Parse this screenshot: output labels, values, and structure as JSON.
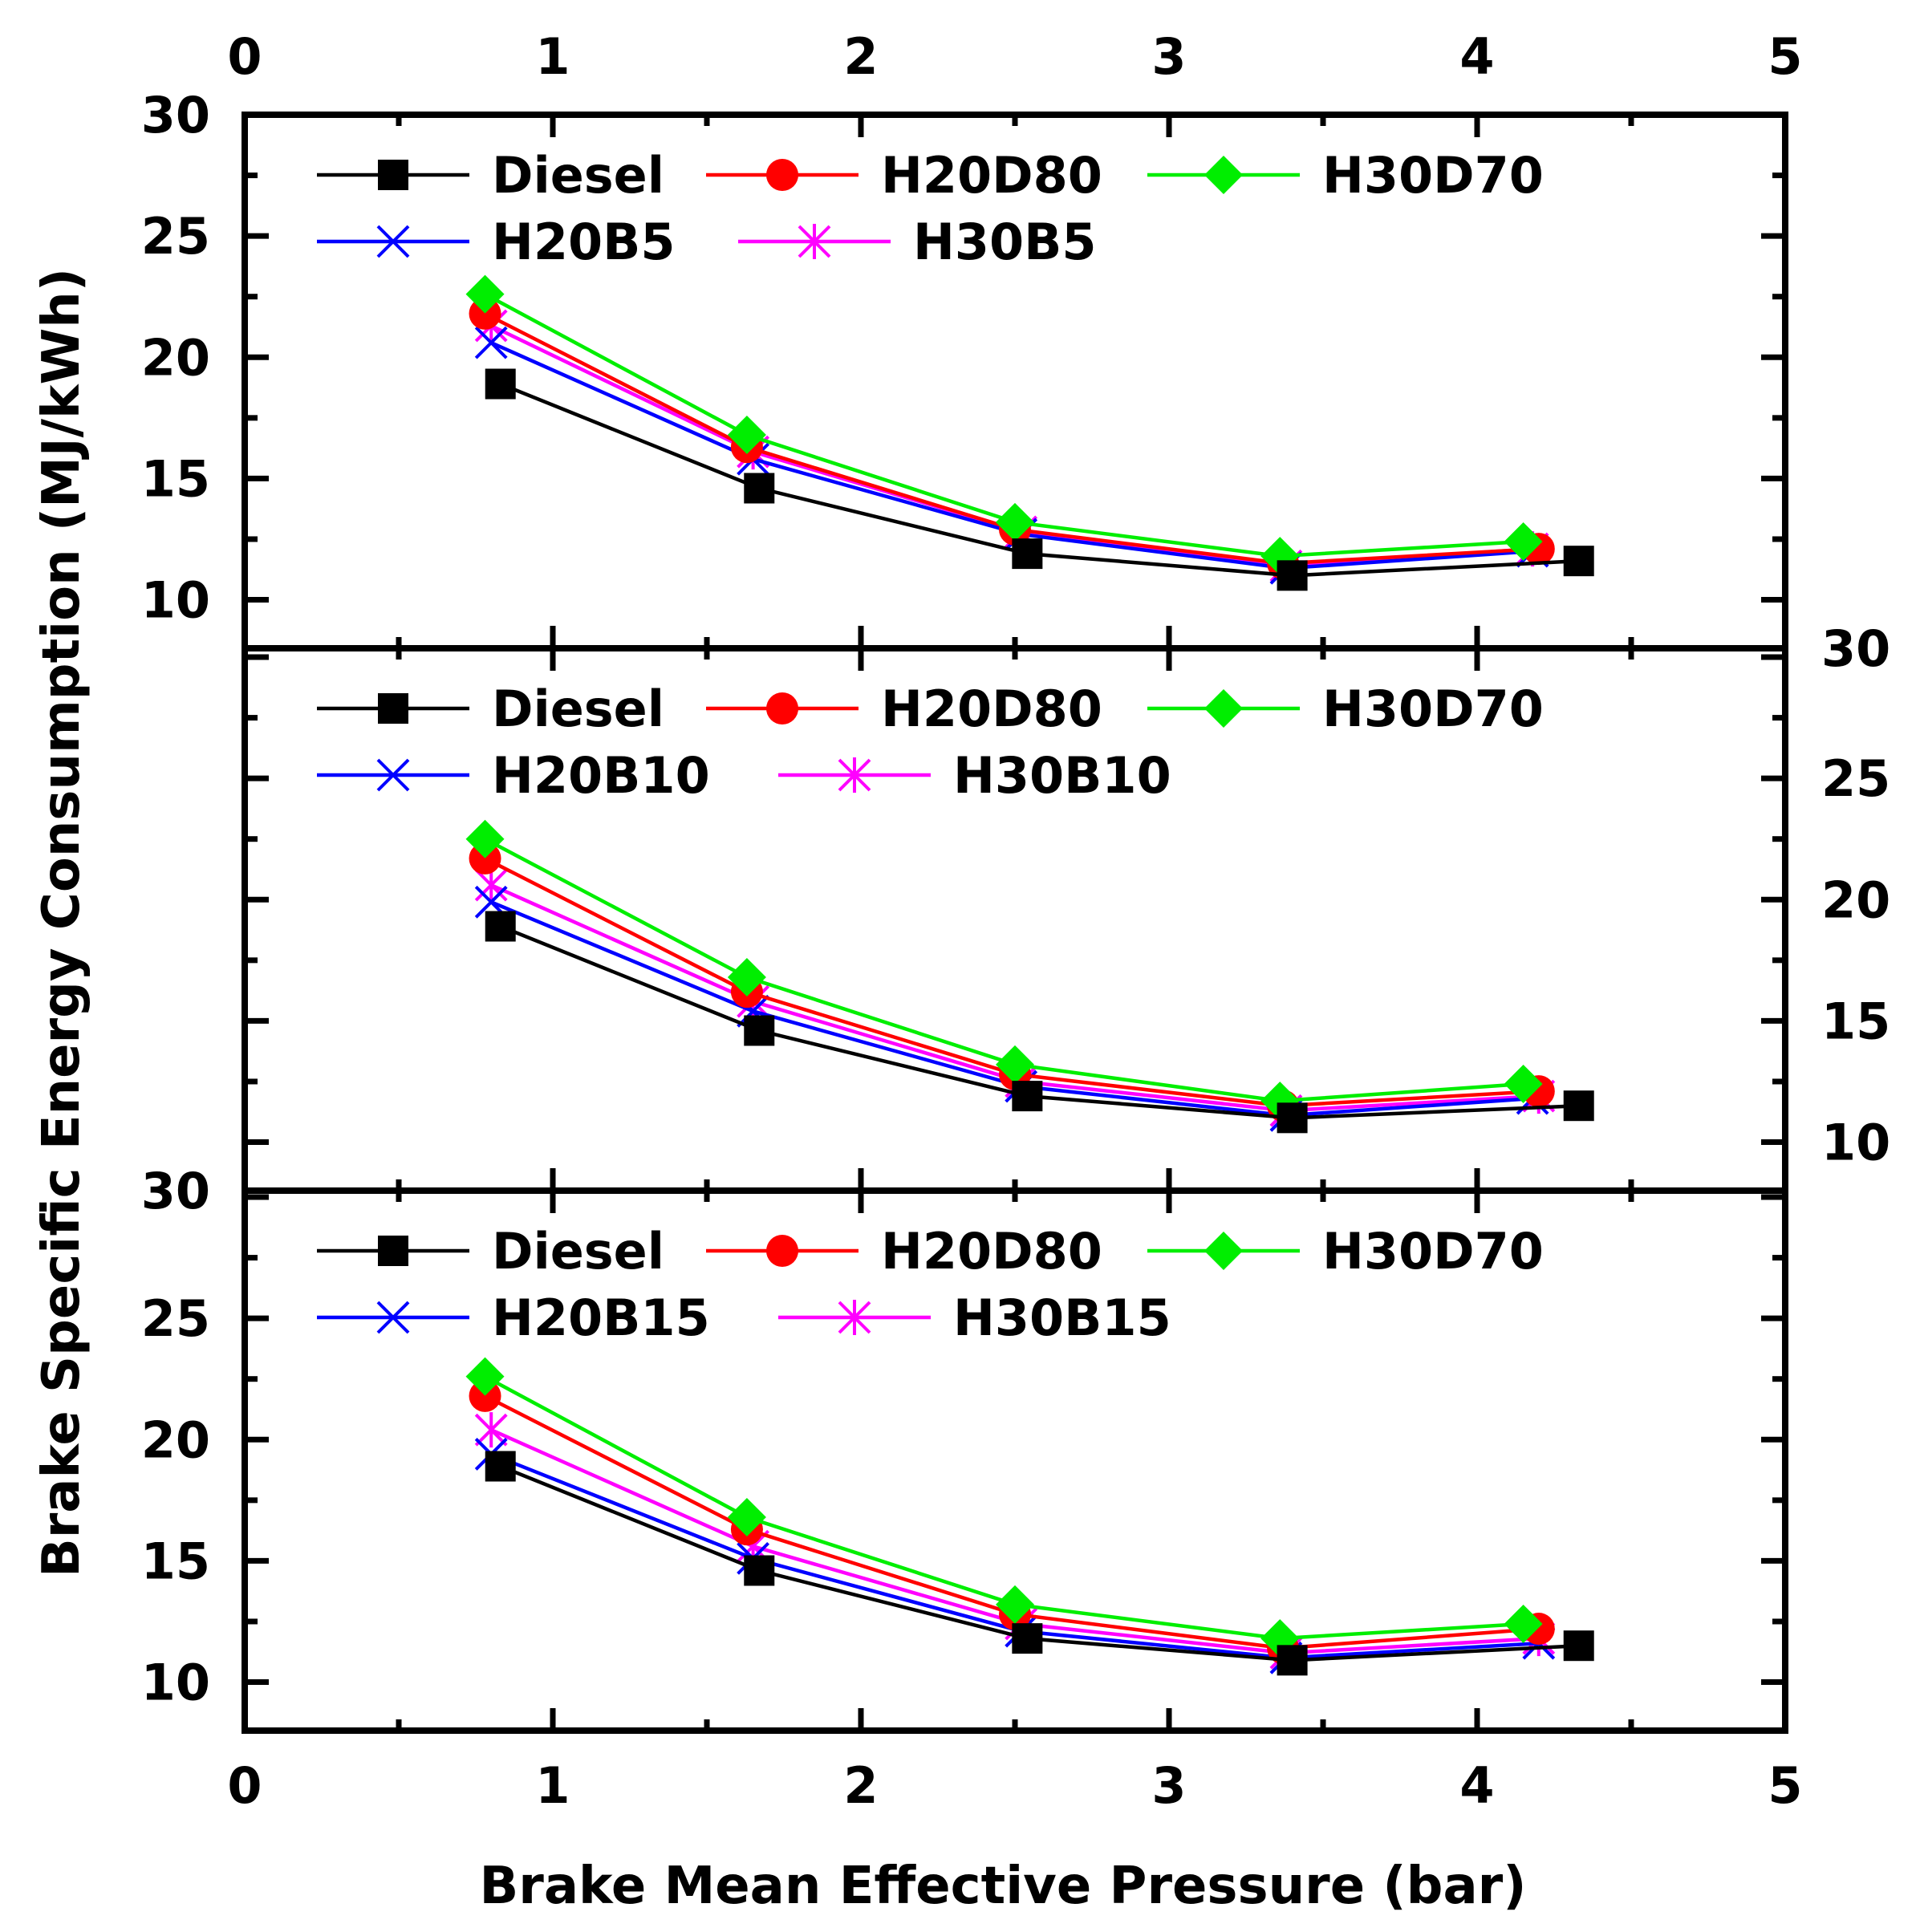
{
  "chart_data": {
    "type": "line",
    "xlabel": "Brake Mean Effective Pressure (bar)",
    "ylabel": "Brake Specific Energy Consumption (MJ/kWh)",
    "xlim": [
      0,
      5
    ],
    "x_ticks": [
      0,
      1,
      2,
      3,
      4,
      5
    ],
    "ylim": [
      8,
      30
    ],
    "y_ticks": [
      10,
      15,
      20,
      25,
      30
    ],
    "grid": false,
    "legend_placement": "top-left",
    "colors": {
      "Diesel": "#000000",
      "H20D80": "#ff0000",
      "H30D70": "#00ee00",
      "blend20": "#0000ff",
      "blend30": "#ff00ff"
    },
    "panels": [
      {
        "y_axis_side": "left",
        "series": [
          {
            "name": "Diesel",
            "marker": "square",
            "x": [
              0.83,
              1.67,
              2.54,
              3.4,
              4.33
            ],
            "y": [
              18.9,
              14.6,
              11.9,
              11.0,
              11.6
            ]
          },
          {
            "name": "H20D80",
            "marker": "circle",
            "x": [
              0.78,
              1.63,
              2.5,
              3.37,
              4.2
            ],
            "y": [
              21.8,
              16.3,
              12.9,
              11.5,
              12.1
            ]
          },
          {
            "name": "H30D70",
            "marker": "diamond",
            "x": [
              0.78,
              1.63,
              2.5,
              3.36,
              4.15
            ],
            "y": [
              22.6,
              16.8,
              13.2,
              11.8,
              12.4
            ]
          },
          {
            "name": "H20B5",
            "marker": "x",
            "x": [
              0.8,
              1.65,
              2.52,
              3.38,
              4.18
            ],
            "y": [
              20.6,
              15.8,
              12.7,
              11.3,
              12.0
            ]
          },
          {
            "name": "H30B5",
            "marker": "star",
            "x": [
              0.8,
              1.65,
              2.52,
              3.38,
              4.18
            ],
            "y": [
              21.3,
              16.1,
              12.8,
              11.4,
              12.1
            ]
          }
        ]
      },
      {
        "y_axis_side": "right",
        "series": [
          {
            "name": "Diesel",
            "marker": "square",
            "x": [
              0.83,
              1.67,
              2.54,
              3.4,
              4.33
            ],
            "y": [
              18.9,
              14.6,
              11.9,
              11.0,
              11.5
            ]
          },
          {
            "name": "H20D80",
            "marker": "circle",
            "x": [
              0.78,
              1.63,
              2.5,
              3.37,
              4.2
            ],
            "y": [
              21.7,
              16.2,
              12.8,
              11.5,
              12.1
            ]
          },
          {
            "name": "H30D70",
            "marker": "diamond",
            "x": [
              0.78,
              1.63,
              2.5,
              3.36,
              4.15
            ],
            "y": [
              22.5,
              16.8,
              13.2,
              11.7,
              12.4
            ]
          },
          {
            "name": "H20B10",
            "marker": "x",
            "x": [
              0.8,
              1.65,
              2.52,
              3.38,
              4.18
            ],
            "y": [
              19.9,
              15.4,
              12.3,
              11.1,
              11.8
            ]
          },
          {
            "name": "H30B10",
            "marker": "star",
            "x": [
              0.8,
              1.65,
              2.52,
              3.38,
              4.2
            ],
            "y": [
              20.6,
              15.8,
              12.5,
              11.3,
              11.9
            ]
          }
        ]
      },
      {
        "y_axis_side": "left",
        "series": [
          {
            "name": "Diesel",
            "marker": "square",
            "x": [
              0.83,
              1.67,
              2.54,
              3.4,
              4.33
            ],
            "y": [
              18.9,
              14.6,
              11.8,
              10.9,
              11.5
            ]
          },
          {
            "name": "H20D80",
            "marker": "circle",
            "x": [
              0.78,
              1.63,
              2.5,
              3.37,
              4.2
            ],
            "y": [
              21.8,
              16.3,
              12.8,
              11.4,
              12.2
            ]
          },
          {
            "name": "H30D70",
            "marker": "diamond",
            "x": [
              0.78,
              1.63,
              2.5,
              3.36,
              4.15
            ],
            "y": [
              22.6,
              16.8,
              13.2,
              11.8,
              12.4
            ]
          },
          {
            "name": "H20B15",
            "marker": "x",
            "x": [
              0.8,
              1.65,
              2.52,
              3.38,
              4.2
            ],
            "y": [
              19.4,
              15.1,
              12.1,
              11.0,
              11.6
            ]
          },
          {
            "name": "H30B15",
            "marker": "star",
            "x": [
              0.8,
              1.65,
              2.52,
              3.38,
              4.2
            ],
            "y": [
              20.4,
              15.6,
              12.4,
              11.2,
              11.8
            ]
          }
        ]
      }
    ]
  }
}
